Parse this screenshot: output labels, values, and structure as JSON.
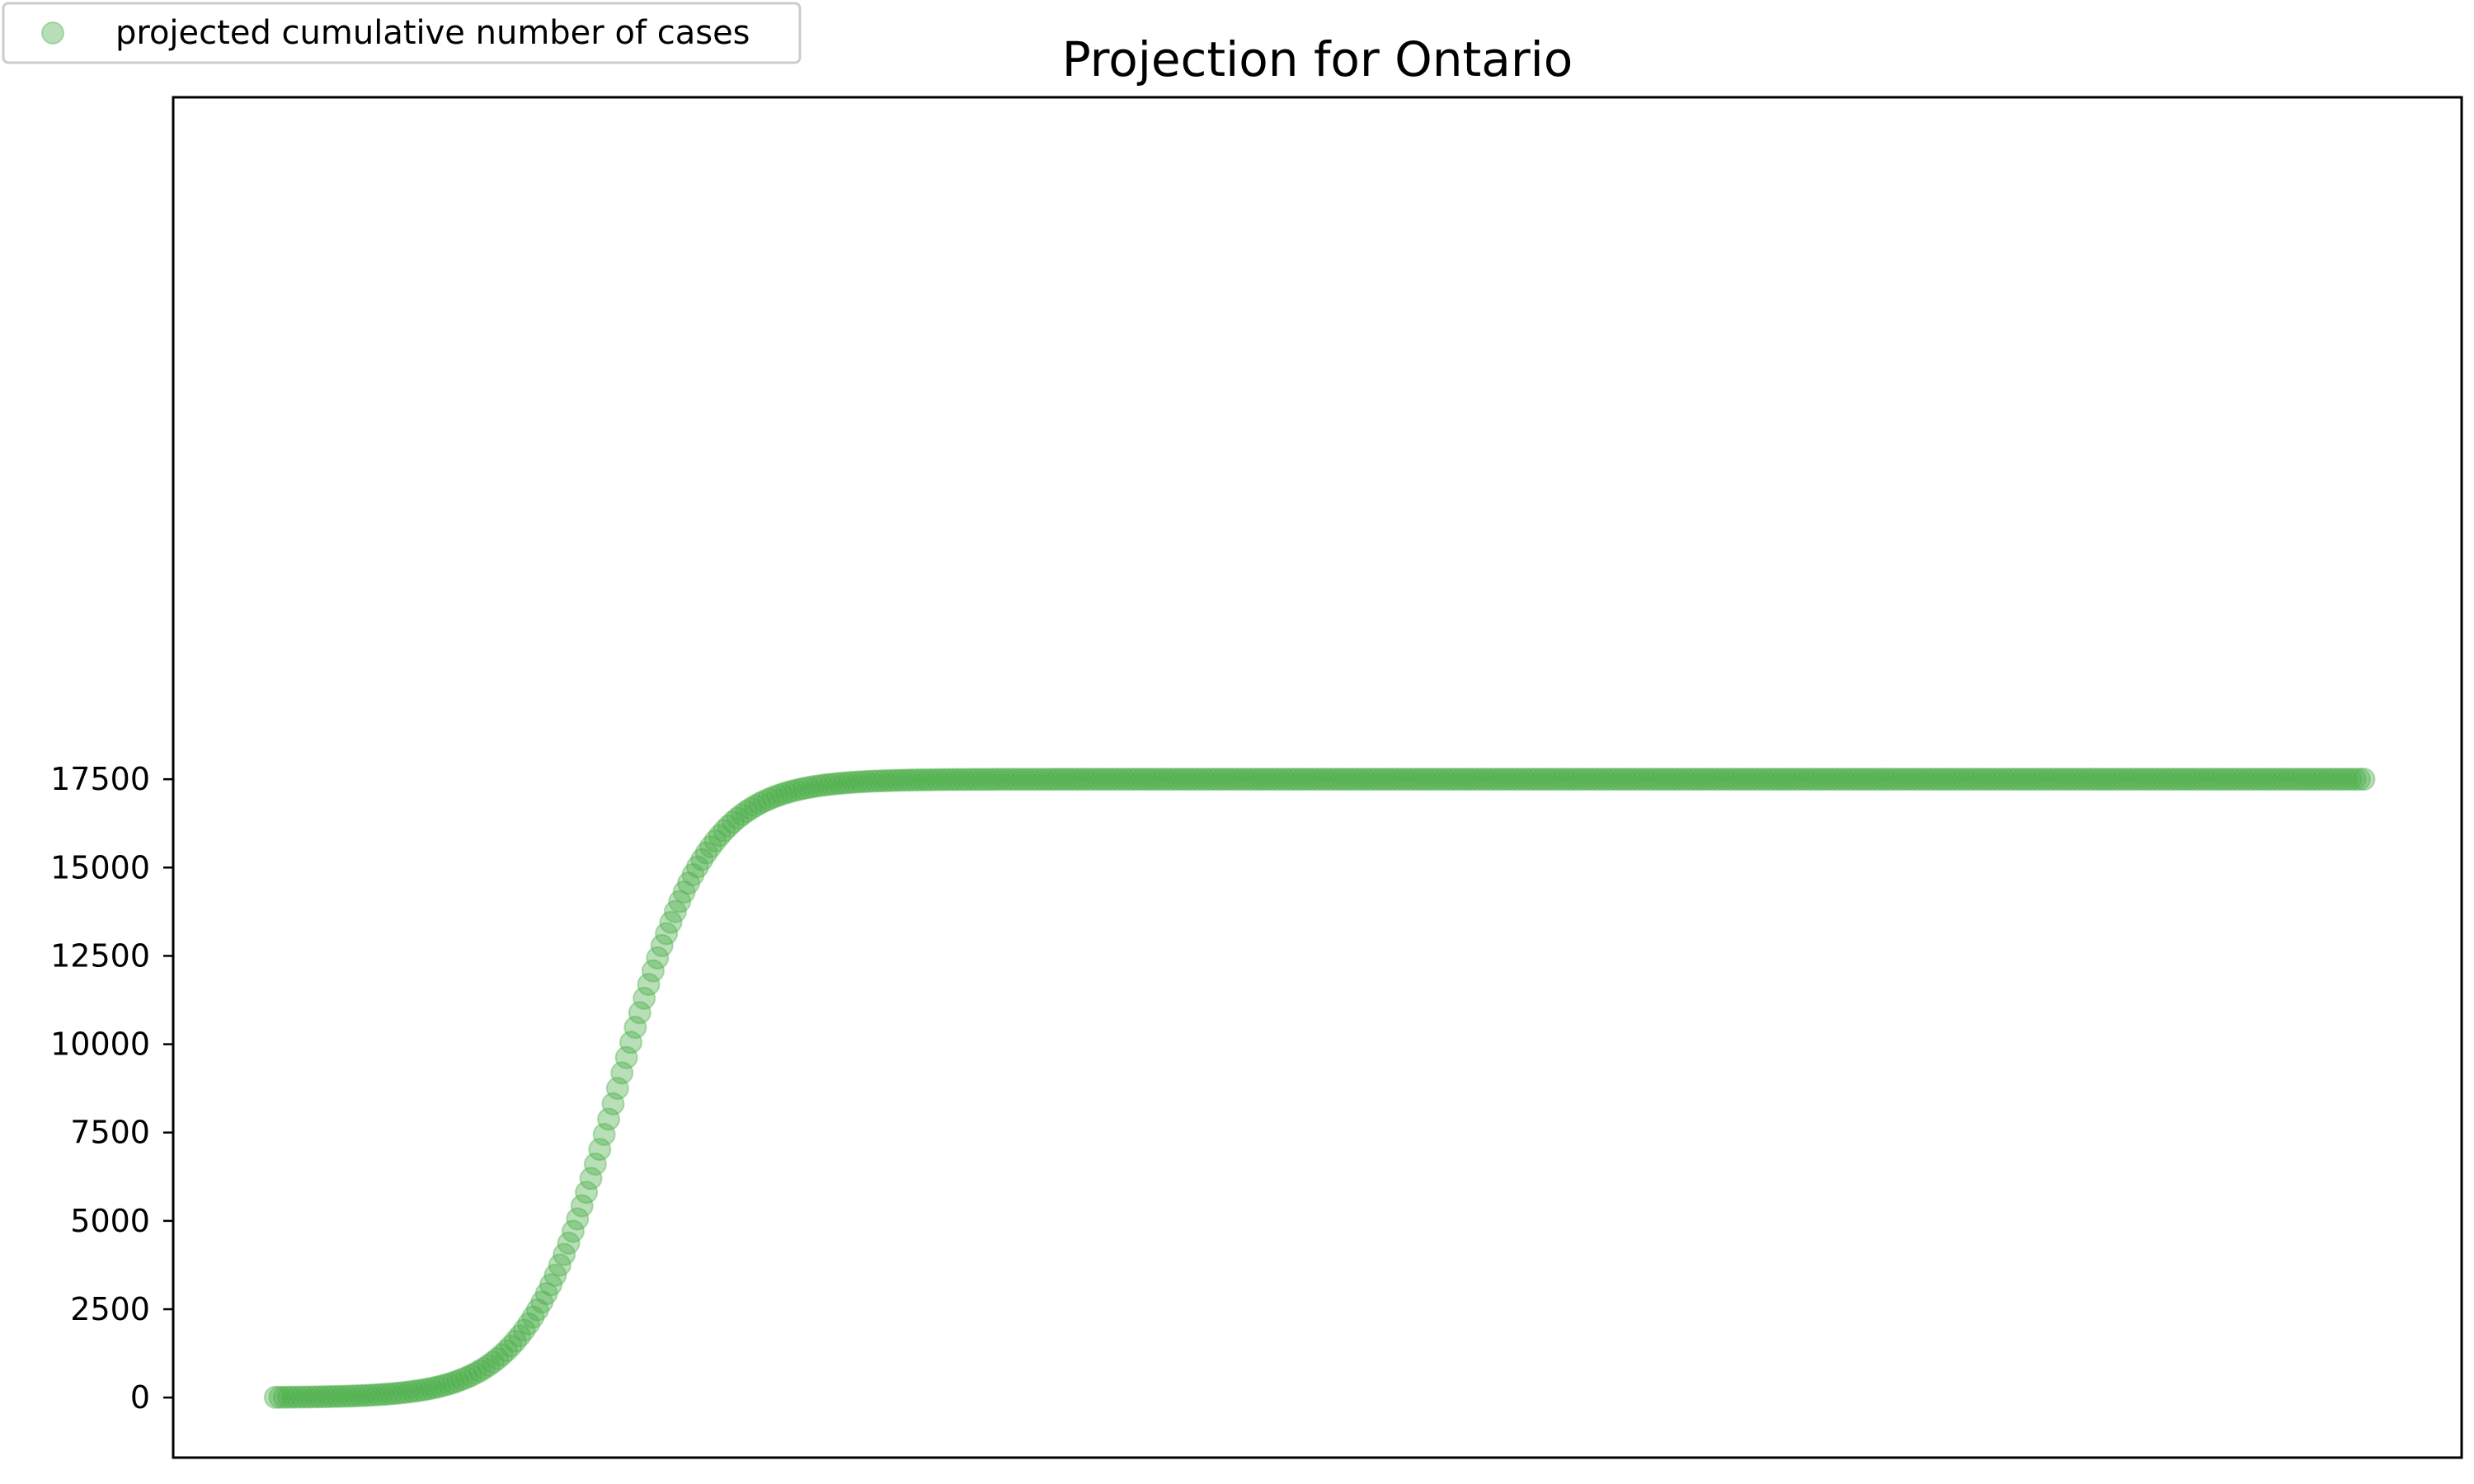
{
  "chart_data": {
    "type": "scatter",
    "title": "Projection for Ontario",
    "xlabel": "",
    "ylabel": "",
    "ylim": [
      -1700,
      36800
    ],
    "xlim": [
      -23,
      492
    ],
    "yticks": [
      0,
      2500,
      5000,
      7500,
      10000,
      12500,
      15000,
      17500
    ],
    "yticklabels": [
      "0",
      "2500",
      "5000",
      "7500",
      "10000",
      "12500",
      "15000",
      "17500"
    ],
    "xticks_visible": false,
    "grid": false,
    "legend_position": "top-left",
    "marker_color": "#4daf4a",
    "marker_opacity": 0.4,
    "series": [
      {
        "name": "projected cumulative number of cases",
        "generator": "logistic",
        "x_start": 0,
        "x_end": 470,
        "n_points": 471,
        "asymptote": 17500,
        "midpoint": 77,
        "growth_rate": 0.1
      }
    ]
  }
}
